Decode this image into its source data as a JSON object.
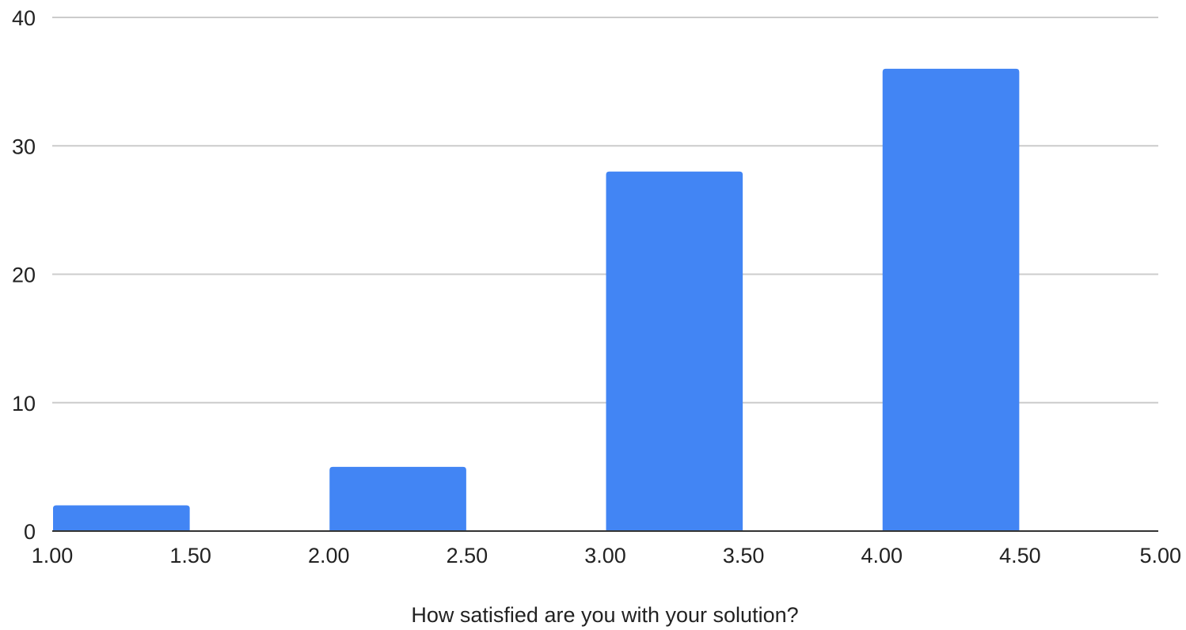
{
  "chart_data": {
    "type": "bar",
    "title": "",
    "xlabel": "How satisfied are you with your solution?",
    "ylabel": "",
    "bins": [
      {
        "x0": 1.0,
        "x1": 1.5,
        "value": 2
      },
      {
        "x0": 2.0,
        "x1": 2.5,
        "value": 5
      },
      {
        "x0": 3.0,
        "x1": 3.5,
        "value": 28
      },
      {
        "x0": 4.0,
        "x1": 4.5,
        "value": 36
      }
    ],
    "xlim": [
      1.0,
      5.0
    ],
    "ylim": [
      0,
      40
    ],
    "x_ticks": [
      "1.00",
      "1.50",
      "2.00",
      "2.50",
      "3.00",
      "3.50",
      "4.00",
      "4.50",
      "5.00"
    ],
    "y_ticks": [
      "0",
      "10",
      "20",
      "30",
      "40"
    ],
    "grid": true,
    "legend": "none",
    "colors": {
      "bar": "#4285f4",
      "grid": "#cccccc",
      "axis": "#333333"
    }
  }
}
